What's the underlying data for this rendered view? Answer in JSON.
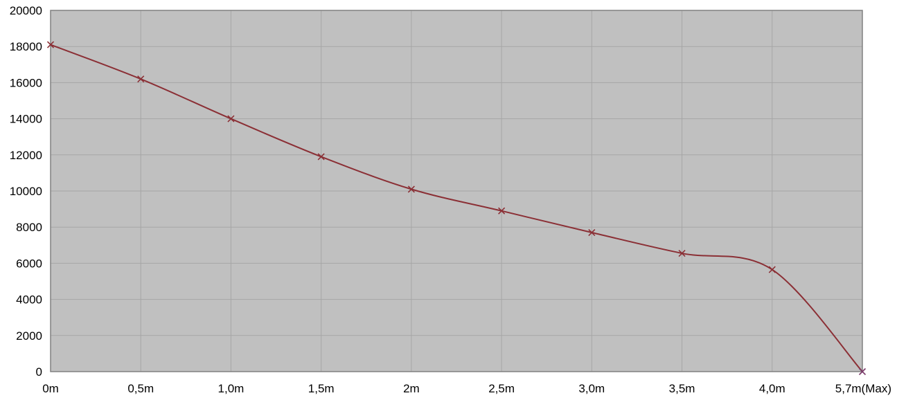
{
  "chart_data": {
    "type": "line",
    "title": "",
    "xlabel": "",
    "ylabel": "",
    "categories": [
      "0m",
      "0,5m",
      "1,0m",
      "1,5m",
      "2m",
      "2,5m",
      "3,0m",
      "3,5m",
      "4,0m",
      "5,7m(Max)"
    ],
    "series": [
      {
        "values": [
          18100,
          16200,
          14000,
          11900,
          10100,
          8900,
          7700,
          6550,
          5650,
          0
        ],
        "color": "#8b2f35",
        "marker": "x",
        "smooth": true
      }
    ],
    "ylim": [
      0,
      20000
    ],
    "yticks": [
      0,
      2000,
      4000,
      6000,
      8000,
      10000,
      12000,
      14000,
      16000,
      18000,
      20000
    ],
    "grid": true,
    "legend": "none",
    "colors": {
      "plot_background": "#c0c0c0",
      "grid": "#a6a6a6",
      "frame": "#808080",
      "line": "#8b2f35"
    }
  }
}
